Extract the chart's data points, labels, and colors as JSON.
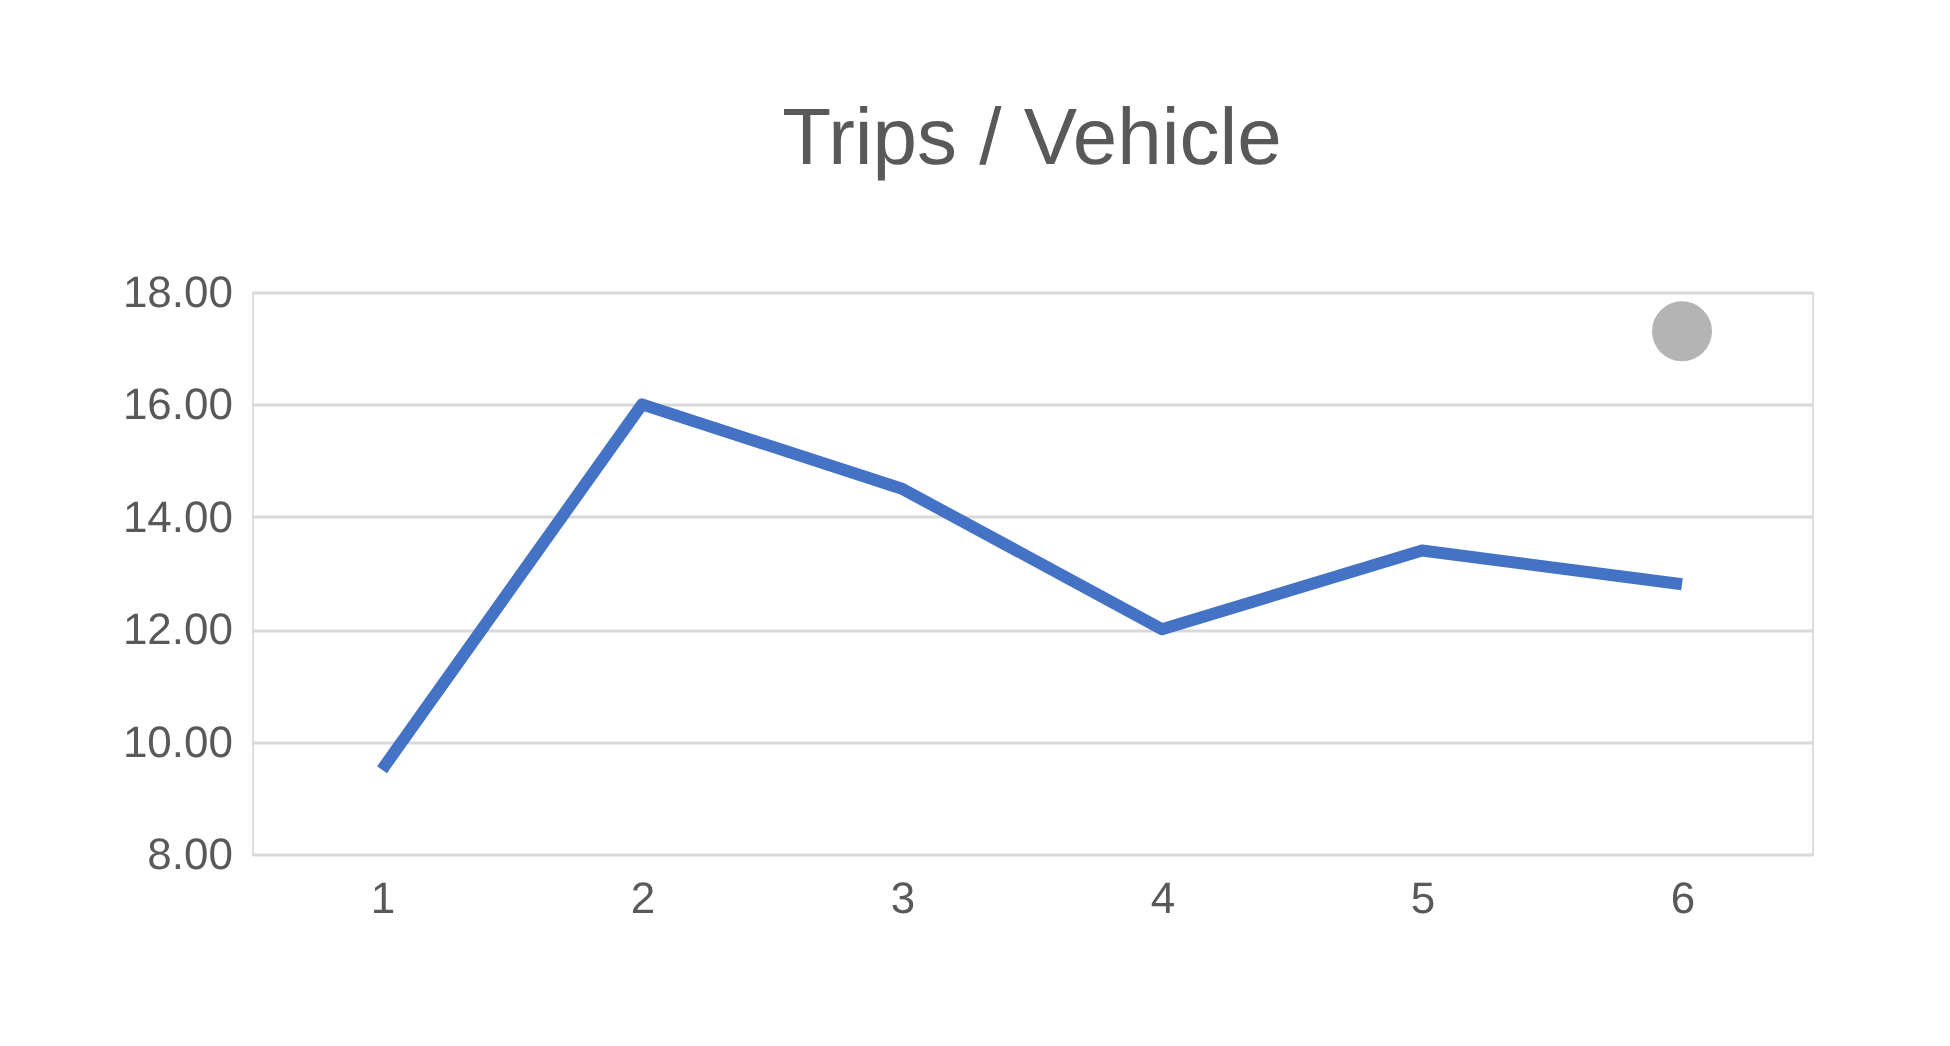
{
  "chart_data": {
    "type": "line",
    "title": "Trips / Vehicle",
    "categories": [
      "1",
      "2",
      "3",
      "4",
      "5",
      "6"
    ],
    "series": [
      {
        "color": "#4472c4",
        "values": [
          9.5,
          16.0,
          14.5,
          12.0,
          13.4,
          12.8
        ]
      },
      {
        "type": "scatter",
        "marker": "circle",
        "color": "#b4b4b4",
        "values": [
          null,
          null,
          null,
          null,
          null,
          17.3
        ]
      }
    ],
    "ylim": [
      8,
      18
    ],
    "yticks": [
      {
        "value": 8,
        "label": "8.00"
      },
      {
        "value": 10,
        "label": "10.00"
      },
      {
        "value": 12,
        "label": "12.00"
      },
      {
        "value": 14,
        "label": "14.00"
      },
      {
        "value": 16,
        "label": "16.00"
      },
      {
        "value": 18,
        "label": "18.00"
      }
    ],
    "grid": "y"
  }
}
